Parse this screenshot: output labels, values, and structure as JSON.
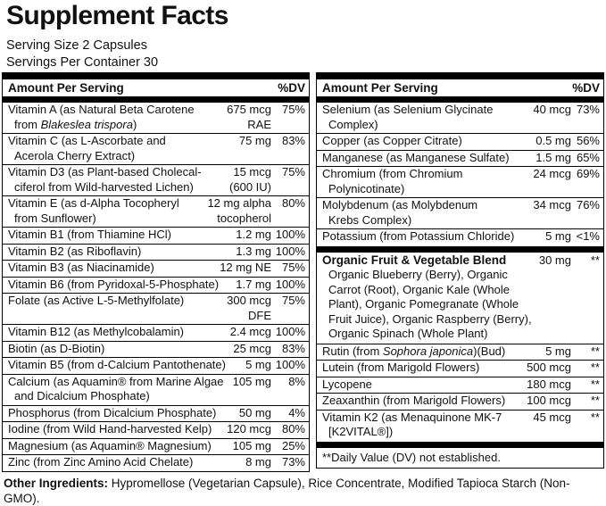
{
  "colors": {
    "text": "#111111",
    "line": "#000000",
    "background": "#ffffff"
  },
  "title": "Supplement Facts",
  "serving": {
    "size": "Serving Size 2 Capsules",
    "per_container": "Servings Per Container 30"
  },
  "columns": [
    {
      "header": {
        "amount": "Amount Per Serving",
        "dv": "%DV"
      },
      "rows": [
        {
          "label": [
            {
              "t": "Vitamin A (as Natural Beta Carotene\nfrom "
            },
            {
              "t": "Blakeslea trispora",
              "i": true
            },
            {
              "t": ")"
            }
          ],
          "amount": "675 mcg\nRAE",
          "dv": "75%"
        },
        {
          "label": [
            {
              "t": "Vitamin C (as L-Ascorbate and\nAcerola Cherry Extract)"
            }
          ],
          "amount": "75 mg",
          "dv": "83%"
        },
        {
          "label": [
            {
              "t": "Vitamin D3 (as Plant-based Cholecal-\nciferol from Wild-harvested Lichen)"
            }
          ],
          "amount": "15 mcg\n(600 IU)",
          "dv": "75%"
        },
        {
          "label": [
            {
              "t": "Vitamin E (as d-Alpha Tocopheryl\nfrom Sunflower)"
            }
          ],
          "amount": "12 mg alpha\ntocopherol",
          "dv": "80%"
        },
        {
          "label": [
            {
              "t": "Vitamin B1 (from Thiamine HCl)"
            }
          ],
          "amount": "1.2 mg",
          "dv": "100%"
        },
        {
          "label": [
            {
              "t": "Vitamin B2 (as Riboflavin)"
            }
          ],
          "amount": "1.3 mg",
          "dv": "100%"
        },
        {
          "label": [
            {
              "t": "Vitamin B3 (as Niacinamide)"
            }
          ],
          "amount": "12 mg NE",
          "dv": "75%"
        },
        {
          "label": [
            {
              "t": "Vitamin B6 (from Pyridoxal-5-Phosphate)"
            }
          ],
          "amount": "1.7 mg",
          "dv": "100%"
        },
        {
          "label": [
            {
              "t": "Folate (as Active L-5-Methylfolate)"
            }
          ],
          "amount": "300 mcg\nDFE",
          "dv": "75%"
        },
        {
          "label": [
            {
              "t": "Vitamin B12 (as Methylcobalamin)"
            }
          ],
          "amount": "2.4 mcg",
          "dv": "100%"
        },
        {
          "label": [
            {
              "t": "Biotin (as D-Biotin)"
            }
          ],
          "amount": "25 mcg",
          "dv": "83%"
        },
        {
          "label": [
            {
              "t": "Vitamin B5 (from d-Calcium Pantothenate)"
            }
          ],
          "amount": "5 mg",
          "dv": "100%"
        },
        {
          "label": [
            {
              "t": "Calcium (as Aquamin® from Marine Algae\nand Dicalcium Phosphate)"
            }
          ],
          "amount": "105 mg",
          "dv": "8%"
        },
        {
          "label": [
            {
              "t": "Phosphorus (from Dicalcium Phosphate)"
            }
          ],
          "amount": "50 mg",
          "dv": "4%"
        },
        {
          "label": [
            {
              "t": "Iodine (from Wild Hand-harvested Kelp)"
            }
          ],
          "amount": "120 mcg",
          "dv": "80%"
        },
        {
          "label": [
            {
              "t": "Magnesium (as Aquamin® Magnesium)"
            }
          ],
          "amount": "105 mg",
          "dv": "25%"
        },
        {
          "label": [
            {
              "t": "Zinc (from Zinc Amino Acid Chelate)"
            }
          ],
          "amount": "8 mg",
          "dv": "73%"
        }
      ]
    },
    {
      "header": {
        "amount": "Amount Per Serving",
        "dv": "%DV"
      },
      "rows": [
        {
          "label": [
            {
              "t": "Selenium (as Selenium Glycinate\nComplex)"
            }
          ],
          "amount": "40 mcg",
          "dv": "73%"
        },
        {
          "label": [
            {
              "t": "Copper (as Copper Citrate)"
            }
          ],
          "amount": "0.5 mg",
          "dv": "56%"
        },
        {
          "label": [
            {
              "t": "Manganese (as Manganese Sulfate)"
            }
          ],
          "amount": "1.5 mg",
          "dv": "65%"
        },
        {
          "label": [
            {
              "t": "Chromium (from Chromium\nPolynicotinate)"
            }
          ],
          "amount": "24 mcg",
          "dv": "69%"
        },
        {
          "label": [
            {
              "t": "Molybdenum (as Molybdenum\nKrebs Complex)"
            }
          ],
          "amount": "34 mcg",
          "dv": "76%"
        },
        {
          "label": [
            {
              "t": "Potassium (from Potassium Chloride)"
            }
          ],
          "amount": "5 mg",
          "dv": "<1%"
        },
        {
          "bar_before": true,
          "bold": true,
          "label": [
            {
              "t": "Organic Fruit & Vegetable Blend"
            }
          ],
          "amount": "30 mg",
          "dv": "**",
          "sublist": "Organic Blueberry (Berry), Organic\nCarrot (Root), Organic Kale (Whole\nPlant), Organic Pomegranate (Whole\nFruit Juice), Organic Raspberry (Berry),\nOrganic Spinach (Whole Plant)"
        },
        {
          "label": [
            {
              "t": "Rutin (from "
            },
            {
              "t": "Sophora japonica",
              "i": true
            },
            {
              "t": ")(Bud)"
            }
          ],
          "amount": "5 mg",
          "dv": "**"
        },
        {
          "label": [
            {
              "t": "Lutein (from Marigold Flowers)"
            }
          ],
          "amount": "500 mcg",
          "dv": "**"
        },
        {
          "label": [
            {
              "t": "Lycopene"
            }
          ],
          "amount": "180 mcg",
          "dv": "**"
        },
        {
          "label": [
            {
              "t": "Zeaxanthin (from Marigold Flowers)"
            }
          ],
          "amount": "100 mcg",
          "dv": "**"
        },
        {
          "label": [
            {
              "t": "Vitamin K2 (as Menaquinone MK-7\n[K2VITAL®])"
            }
          ],
          "amount": "45 mcg",
          "dv": "**"
        },
        {
          "bar_before": true,
          "footnote": true,
          "label": [
            {
              "t": "**Daily Value (DV) not established."
            }
          ]
        }
      ]
    }
  ],
  "footer": {
    "label": "Other Ingredients:",
    "text": " Hypromellose (Vegetarian Capsule), Rice Concentrate, Modified Tapioca Starch (Non-GMO)."
  }
}
